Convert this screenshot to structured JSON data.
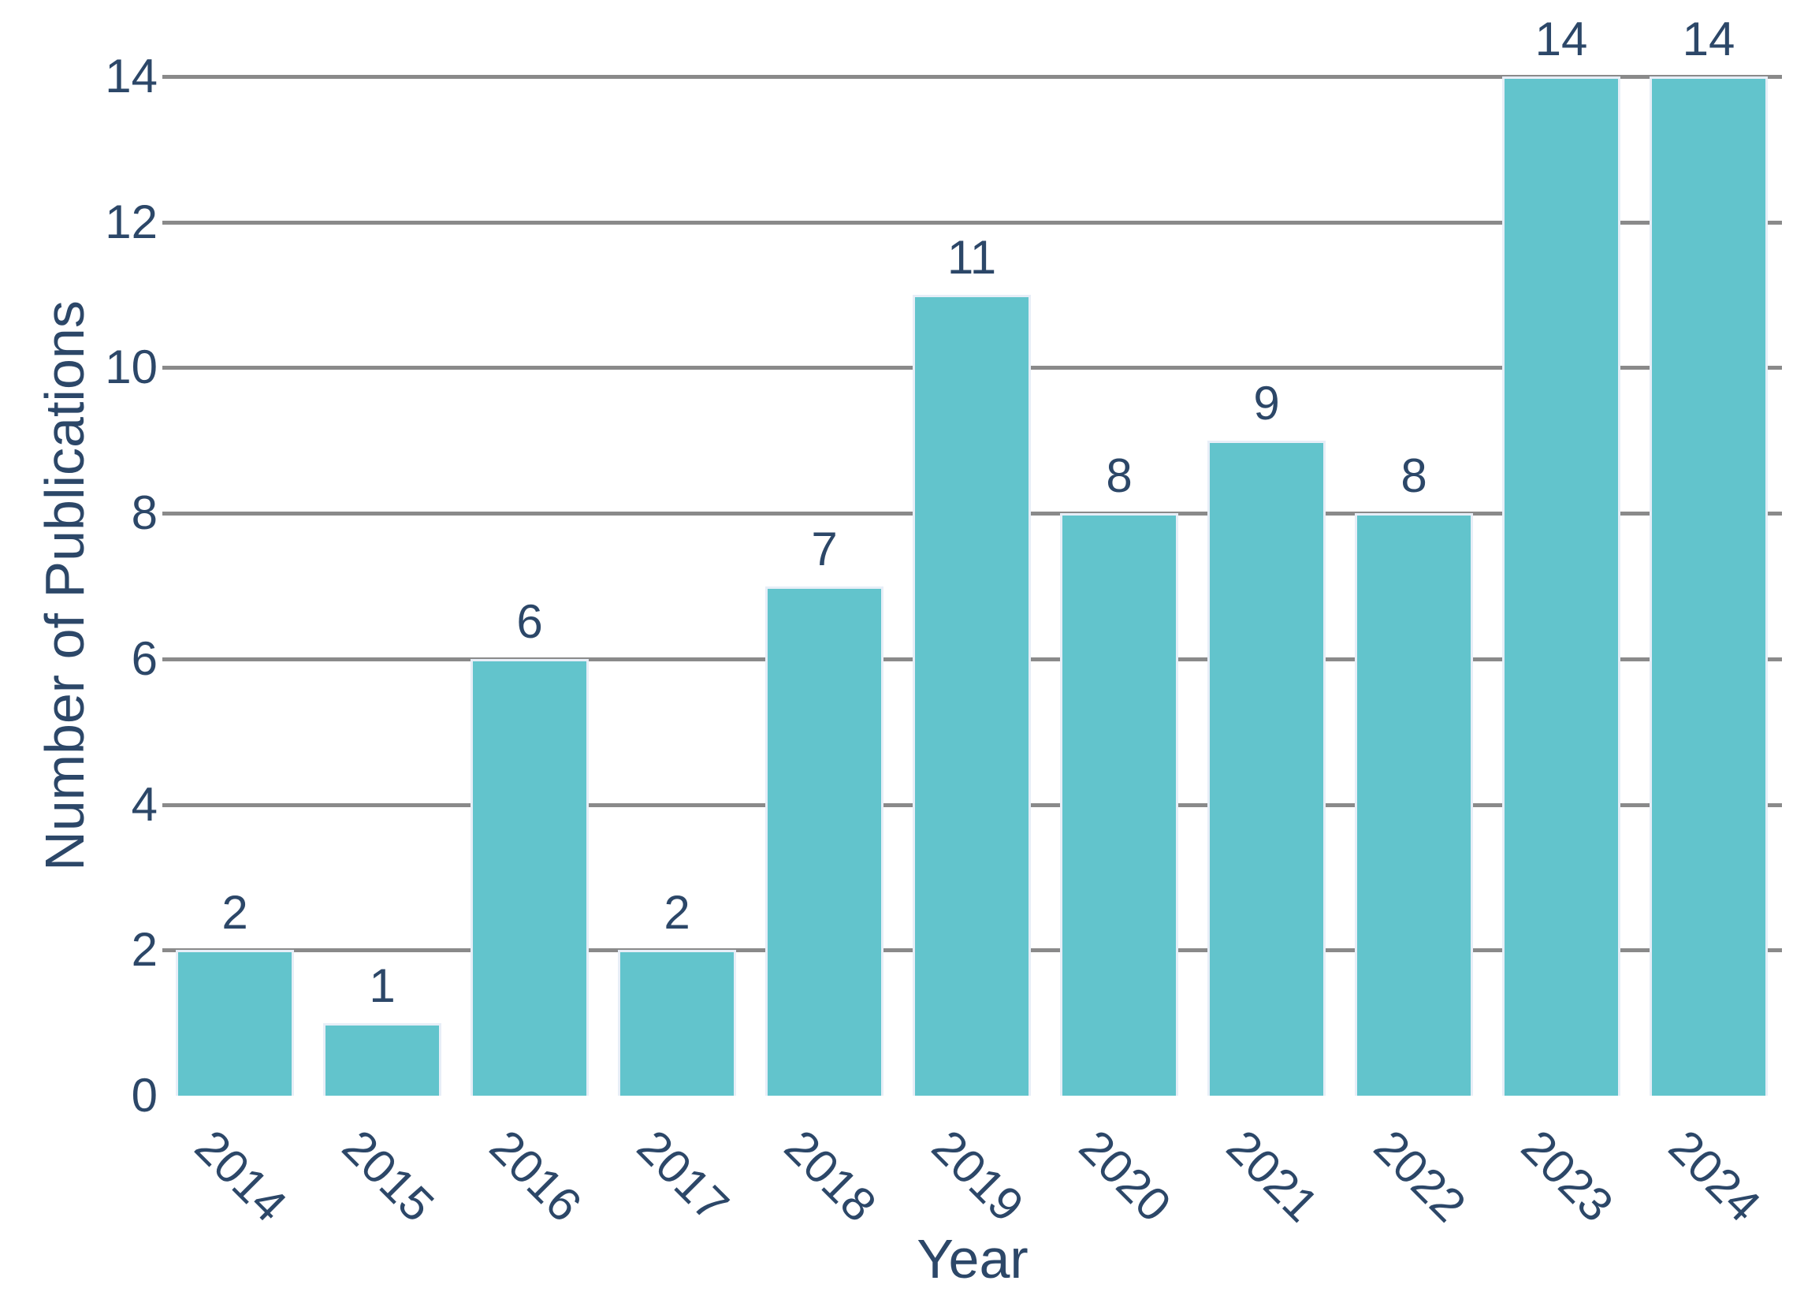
{
  "chart_data": {
    "type": "bar",
    "title": "",
    "categories": [
      "2014",
      "2015",
      "2016",
      "2017",
      "2018",
      "2019",
      "2020",
      "2021",
      "2022",
      "2023",
      "2024"
    ],
    "values": [
      2,
      1,
      6,
      2,
      7,
      11,
      8,
      9,
      8,
      14,
      14
    ],
    "bar_value_labels": [
      "2",
      "1",
      "6",
      "2",
      "7",
      "11",
      "8",
      "9",
      "8",
      "14",
      "14"
    ],
    "xlabel": "Year",
    "ylabel": "Number of Publications",
    "yticks": [
      0,
      2,
      4,
      6,
      8,
      10,
      12,
      14
    ],
    "ylim": [
      0,
      14
    ],
    "grid": "horizontal-only",
    "legend": "none",
    "colors": {
      "bar_fill": "#62c4cc",
      "bar_edge": "#e7eef7",
      "gridline": "#8a8a8a",
      "text": "#2c4768",
      "background": "#ffffff"
    }
  }
}
